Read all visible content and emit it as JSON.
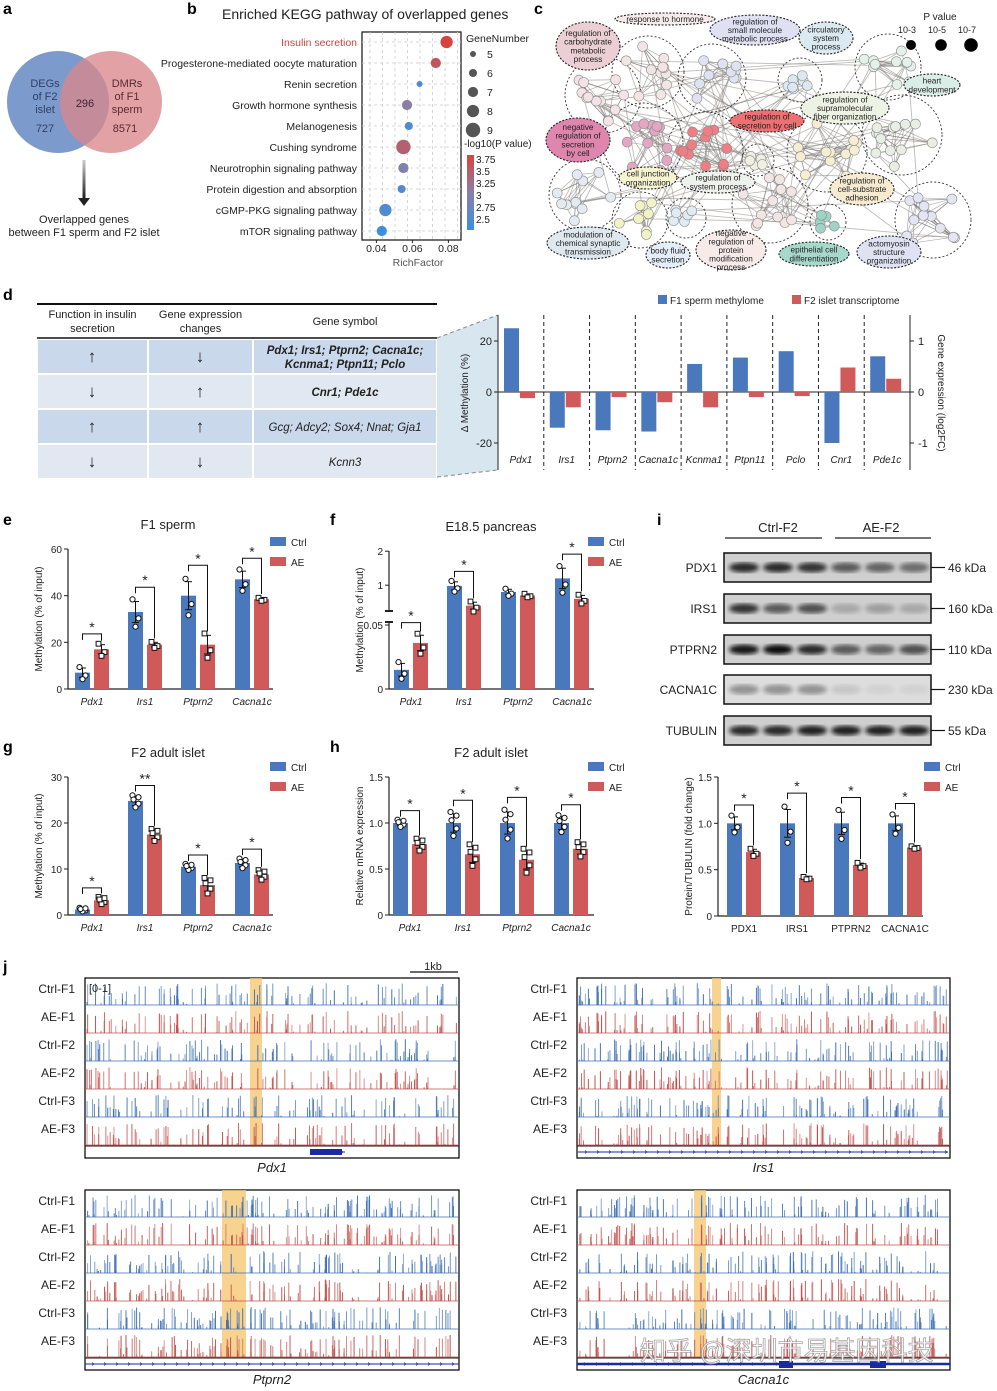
{
  "panel_letters": {
    "a": "a",
    "b": "b",
    "c": "c",
    "d": "d",
    "e": "e",
    "f": "f",
    "g": "g",
    "h": "h",
    "i": "i",
    "j": "j"
  },
  "panel_a": {
    "left_set": [
      "DEGs",
      "of F2",
      "islet"
    ],
    "left_count": "727",
    "right_set": [
      "DMRs",
      "of F1",
      "sperm"
    ],
    "right_count": "8571",
    "overlap_count": "296",
    "caption": [
      "Overlapped genes",
      "between F1 sperm and F2 islet"
    ],
    "colors": {
      "left": "#6f8fc6",
      "right": "#d9878c"
    }
  },
  "chart_data": [
    {
      "id": "b",
      "type": "scatter",
      "title": "Enriched KEGG pathway of overlapped genes",
      "xlabel": "RichFactor",
      "xlim": [
        0.032,
        0.087
      ],
      "xticks": [
        "0.04",
        "0.06",
        "0.08"
      ],
      "xtick_values": [
        0.04,
        0.06,
        0.08
      ],
      "grid": true,
      "categories": [
        "Insulin secretion",
        "Progesterone-mediated oocyte maturation",
        "Renin secretion",
        "Growth hormone synthesis",
        "Melanogenesis",
        "Cushing syndrome",
        "Neurotrophin signaling pathway",
        "Protein digestion and absorption",
        "cGMP-PKG signaling pathway",
        "mTOR signaling pathway"
      ],
      "highlight_category": "Insulin secretion",
      "rich_factor": [
        0.079,
        0.073,
        0.064,
        0.057,
        0.058,
        0.055,
        0.055,
        0.054,
        0.045,
        0.043
      ],
      "gene_number": [
        8,
        7,
        5,
        7,
        6,
        9,
        7,
        6,
        8,
        7
      ],
      "neg_log10_p": [
        3.8,
        3.6,
        2.6,
        3.1,
        2.6,
        3.45,
        3.0,
        2.6,
        2.6,
        2.4
      ],
      "size_legend_title": "GeneNumber",
      "size_legend": [
        "5",
        "6",
        "7",
        "8",
        "9"
      ],
      "color_legend_title": "-log10(P value)",
      "color_legend": [
        "3.75",
        "3.5",
        "3.25",
        "3",
        "2.75",
        "2.5"
      ]
    },
    {
      "id": "d",
      "type": "bar",
      "categories": [
        "Pdx1",
        "Irs1",
        "Ptprn2",
        "Cacna1c",
        "Kcnma1",
        "Ptpn11",
        "Pclo",
        "Cnr1",
        "Pde1c"
      ],
      "series": [
        {
          "name": "F1 sperm methylome",
          "axis": "left",
          "values": [
            25,
            -14,
            -15,
            -15.5,
            11,
            13.5,
            16,
            -20,
            14
          ],
          "color": "#4a78bd"
        },
        {
          "name": "F2 islet transcriptome",
          "axis": "right",
          "values": [
            -0.12,
            -0.3,
            -0.1,
            -0.2,
            -0.3,
            -0.1,
            -0.08,
            0.48,
            0.26
          ],
          "color": "#d05a5a"
        }
      ],
      "ylabel": "Δ Methylation (%)",
      "ylim": [
        -23,
        30
      ],
      "yticks": [
        "20",
        "0",
        "-20"
      ],
      "ytick_values": [
        20,
        0,
        -20
      ],
      "y2label": "Gene expression (log2FC)",
      "y2lim": [
        -1.15,
        1.5
      ],
      "y2ticks": [
        "1",
        "0",
        "-1"
      ],
      "y2tick_values": [
        1,
        0,
        -1
      ],
      "legend": "top-right"
    },
    {
      "id": "e",
      "type": "bar",
      "title": "F1 sperm",
      "ylabel": "Methylation (% of input)",
      "categories": [
        "Pdx1",
        "Irs1",
        "Ptprn2",
        "Cacna1c"
      ],
      "ylim": [
        0,
        60
      ],
      "yticks": [
        "0",
        "20",
        "40",
        "60"
      ],
      "ytick_values": [
        0,
        20,
        40,
        60
      ],
      "series": [
        {
          "name": "Ctrl",
          "values": [
            7,
            33,
            40,
            47
          ],
          "sem": [
            2,
            4.5,
            6,
            3.5
          ]
        },
        {
          "name": "AE",
          "values": [
            17,
            19,
            19,
            38.5
          ],
          "sem": [
            2,
            1,
            4,
            0.5
          ]
        }
      ],
      "significance": [
        "*",
        "*",
        "*",
        "*"
      ]
    },
    {
      "id": "f",
      "type": "bar",
      "title": "E18.5 pancreas",
      "ylabel": "Methylation (% of input)",
      "broken_axis": true,
      "categories": [
        "Pdx1",
        "Irs1",
        "Ptprn2",
        "Cacna1c"
      ],
      "ylim": [
        0,
        2
      ],
      "yticks": [
        "0",
        "0.05",
        "1",
        "2"
      ],
      "ytick_values": [
        0,
        0.05,
        1,
        2
      ],
      "series": [
        {
          "name": "Ctrl",
          "values": [
            0.015,
            0.98,
            0.8,
            1.2
          ],
          "sem": [
            0.005,
            0.12,
            0.08,
            0.3
          ]
        },
        {
          "name": "AE",
          "values": [
            0.036,
            0.4,
            0.7,
            0.6
          ],
          "sem": [
            0.006,
            0.1,
            0.04,
            0.1
          ]
        }
      ],
      "significance": [
        "*",
        "*",
        "",
        "*"
      ]
    },
    {
      "id": "g",
      "type": "bar",
      "title": "F2 adult islet",
      "ylabel": "Methylation (% of input)",
      "categories": [
        "Pdx1",
        "Irs1",
        "Ptprn2",
        "Cacna1c"
      ],
      "ylim": [
        0,
        30
      ],
      "yticks": [
        "0",
        "10",
        "20",
        "30"
      ],
      "ytick_values": [
        0,
        10,
        20,
        30
      ],
      "series": [
        {
          "name": "Ctrl",
          "values": [
            1.2,
            24.8,
            10.5,
            11.3
          ],
          "sem": [
            0.3,
            1,
            0.5,
            0.8
          ]
        },
        {
          "name": "AE",
          "values": [
            3.2,
            17.5,
            6.5,
            8.8
          ],
          "sem": [
            0.6,
            1,
            1.3,
            0.8
          ]
        }
      ],
      "significance": [
        "*",
        "**",
        "*",
        "*"
      ]
    },
    {
      "id": "h",
      "type": "bar",
      "title": "F2 adult islet",
      "ylabel": "Relative mRNA expression",
      "categories": [
        "Pdx1",
        "Irs1",
        "Ptprn2",
        "Cacna1c"
      ],
      "ylim": [
        0,
        1.5
      ],
      "yticks": [
        "0",
        "0.5",
        "1.0",
        "1.5"
      ],
      "ytick_values": [
        0,
        0.5,
        1,
        1.5
      ],
      "series": [
        {
          "name": "Ctrl",
          "values": [
            1,
            1,
            1,
            1
          ],
          "sem": [
            0.03,
            0.1,
            0.12,
            0.07
          ]
        },
        {
          "name": "AE",
          "values": [
            0.77,
            0.66,
            0.6,
            0.72
          ],
          "sem": [
            0.05,
            0.09,
            0.1,
            0.06
          ]
        }
      ],
      "significance": [
        "*",
        "*",
        "*",
        "*"
      ]
    },
    {
      "id": "i",
      "type": "bar",
      "ylabel": "Protein/TUBULIN (fold change)",
      "categories": [
        "PDX1",
        "IRS1",
        "PTPRN2",
        "CACNA1C"
      ],
      "ylim": [
        0,
        1.5
      ],
      "yticks": [
        "0",
        "0.5",
        "1.0",
        "1.5"
      ],
      "ytick_values": [
        0,
        0.5,
        1,
        1.5
      ],
      "series": [
        {
          "name": "Ctrl",
          "values": [
            1,
            1,
            1,
            1
          ],
          "sem": [
            0.07,
            0.15,
            0.12,
            0.08
          ]
        },
        {
          "name": "AE",
          "values": [
            0.69,
            0.41,
            0.55,
            0.74
          ],
          "sem": [
            0.03,
            0.01,
            0.02,
            0.01
          ]
        }
      ],
      "significance": [
        "*",
        "*",
        "*",
        "*"
      ]
    }
  ],
  "colors": {
    "ctrl": "#4a78bd",
    "ae": "#d05a5a",
    "highlight": "#f6c46a",
    "insulin_label": "#c8404a"
  },
  "panel_c": {
    "legend_title": "P value",
    "legend_labels": [
      "10-3",
      "10-5",
      "10-7"
    ],
    "clusters": [
      {
        "lines": [
          "response to hormone"
        ]
      },
      {
        "lines": [
          "regulation of",
          "carbohydrate",
          "metabolic",
          "process"
        ]
      },
      {
        "lines": [
          "regulation of",
          "small molecule",
          "metabolic process"
        ]
      },
      {
        "lines": [
          "circulatory",
          "system",
          "process"
        ]
      },
      {
        "lines": [
          "heart",
          "development"
        ]
      },
      {
        "lines": [
          "regulation of",
          "supramolecular",
          "fiber organization"
        ]
      },
      {
        "lines": [
          "regulation of",
          "secretion by cell"
        ]
      },
      {
        "lines": [
          "negative",
          "regulation of",
          "secretion",
          "by cell"
        ]
      },
      {
        "lines": [
          "cell junction",
          "organization"
        ]
      },
      {
        "lines": [
          "regulation of",
          "system process"
        ]
      },
      {
        "lines": [
          "regulation of",
          "cell-substrate",
          "adhesion"
        ]
      },
      {
        "lines": [
          "modulation of",
          "chemical synaptic",
          "transmission"
        ]
      },
      {
        "lines": [
          "body fluid",
          "secretion"
        ]
      },
      {
        "lines": [
          "negative",
          "regulation of",
          "protein",
          "modification",
          "process"
        ]
      },
      {
        "lines": [
          "epithelial cell",
          "differentiation"
        ]
      },
      {
        "lines": [
          "actomyosin",
          "structure",
          "organization"
        ]
      }
    ]
  },
  "panel_d_table": {
    "headers": [
      [
        "Function in insulin",
        "secretion"
      ],
      [
        "Gene expression",
        "changes"
      ],
      [
        "Gene symbol"
      ]
    ],
    "rows": [
      {
        "function": "↑",
        "expression": "↓",
        "genes": [
          "Pdx1; Irs1; Ptprn2; Cacna1c;",
          "Kcnma1; Ptpn11; Pclo"
        ],
        "bold": true
      },
      {
        "function": "↓",
        "expression": "↑",
        "genes": [
          "Cnr1; Pde1c"
        ],
        "bold": true
      },
      {
        "function": "↑",
        "expression": "↑",
        "genes": [
          "Gcg; Adcy2; Sox4; Nnat; Gja1"
        ],
        "bold": false
      },
      {
        "function": "↓",
        "expression": "↓",
        "genes": [
          "Kcnn3"
        ],
        "bold": false
      }
    ]
  },
  "panel_i_blot": {
    "groups": [
      "Ctrl-F2",
      "AE-F2"
    ],
    "proteins": [
      {
        "name": "PDX1",
        "size": "46 kDa"
      },
      {
        "name": "IRS1",
        "size": "160 kDa"
      },
      {
        "name": "PTPRN2",
        "size": "110 kDa"
      },
      {
        "name": "CACNA1C",
        "size": "230 kDa"
      },
      {
        "name": "TUBULIN",
        "size": "55 kDa"
      }
    ]
  },
  "panel_j": {
    "range_label": "[0-1]",
    "scale_label": "1kb",
    "tracks": [
      "Ctrl-F1",
      "AE-F1",
      "Ctrl-F2",
      "AE-F2",
      "Ctrl-F3",
      "AE-F3"
    ],
    "genes": [
      "Pdx1",
      "Irs1",
      "Ptprn2",
      "Cacna1c"
    ]
  },
  "watermark": "知乎 @深圳市易基因科技"
}
